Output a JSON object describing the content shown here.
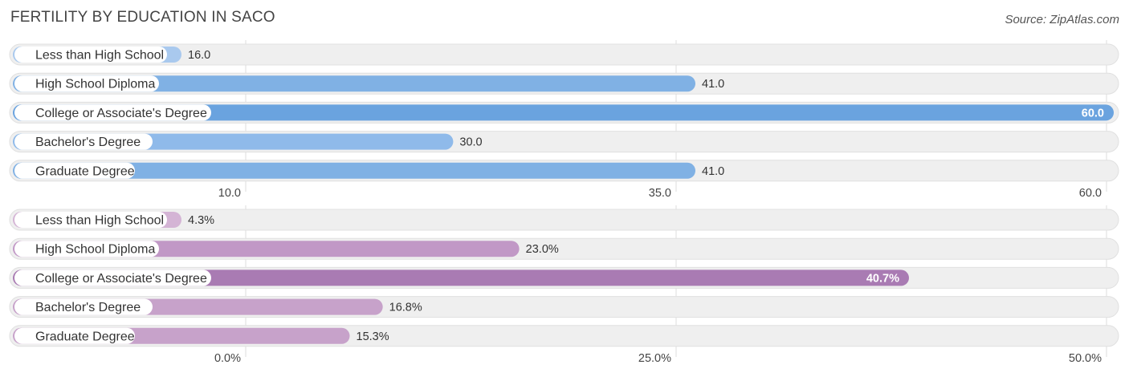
{
  "title": "FERTILITY BY EDUCATION IN SACO",
  "source": "Source: ZipAtlas.com",
  "chart_data": [
    {
      "type": "bar",
      "orientation": "horizontal",
      "categories": [
        "Less than High School",
        "High School Diploma",
        "College or Associate's Degree",
        "Bachelor's Degree",
        "Graduate Degree"
      ],
      "values": [
        16.0,
        41.0,
        60.0,
        30.0,
        41.0
      ],
      "value_labels": [
        "16.0",
        "41.0",
        "60.0",
        "30.0",
        "41.0"
      ],
      "xlim": [
        10.0,
        60.0
      ],
      "ticks": [
        10.0,
        35.0,
        60.0
      ],
      "tick_labels": [
        "10.0",
        "35.0",
        "60.0"
      ],
      "grid": true,
      "colors": [
        "#a9c9ee",
        "#80b1e4",
        "#6aa3df",
        "#8fbaea",
        "#80b1e4"
      ],
      "label_inside_color": "#ffffff",
      "label_outside_color": "#333333"
    },
    {
      "type": "bar",
      "orientation": "horizontal",
      "categories": [
        "Less than High School",
        "High School Diploma",
        "College or Associate's Degree",
        "Bachelor's Degree",
        "Graduate Degree"
      ],
      "values": [
        4.3,
        23.0,
        40.7,
        16.8,
        15.3
      ],
      "value_labels": [
        "4.3%",
        "23.0%",
        "40.7%",
        "16.8%",
        "15.3%"
      ],
      "xlim": [
        0.0,
        50.0
      ],
      "ticks": [
        0.0,
        25.0,
        50.0
      ],
      "tick_labels": [
        "0.0%",
        "25.0%",
        "50.0%"
      ],
      "grid": true,
      "colors": [
        "#d4b4d5",
        "#c198c6",
        "#a97bb3",
        "#c7a2ca",
        "#c7a2ca"
      ],
      "label_inside_color": "#ffffff",
      "label_outside_color": "#333333"
    }
  ]
}
